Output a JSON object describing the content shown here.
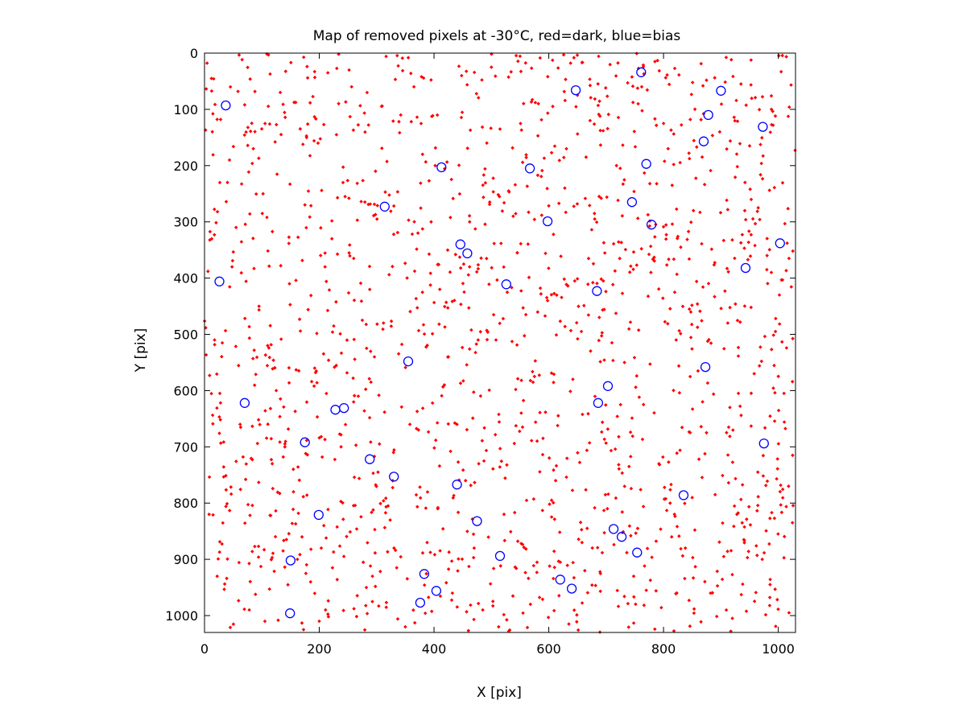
{
  "chart_data": {
    "type": "scatter",
    "title": "Map of removed pixels at -30°C, red=dark, blue=bias",
    "xlabel": "X [pix]",
    "ylabel": "Y [pix]",
    "xlim": [
      0,
      1030
    ],
    "ylim": [
      0,
      1030
    ],
    "y_inverted": true,
    "grid": false,
    "xticks": [
      0,
      200,
      400,
      600,
      800,
      1000
    ],
    "yticks": [
      0,
      100,
      200,
      300,
      400,
      500,
      600,
      700,
      800,
      900,
      1000
    ],
    "series": [
      {
        "name": "dark",
        "color": "#ff0000",
        "marker": "dot",
        "description": "Approximately 1500 red dots scattered uniformly over the full 1030x1030 frame; positions are densely random and not individually legible.",
        "approx_count": 1500,
        "points": [
          [
            12,
            45
          ],
          [
            28,
            118
          ],
          [
            40,
            230
          ],
          [
            55,
            310
          ],
          [
            70,
            92
          ],
          [
            85,
            170
          ],
          [
            95,
            450
          ],
          [
            110,
            520
          ],
          [
            125,
            600
          ],
          [
            140,
            700
          ],
          [
            155,
            780
          ],
          [
            170,
            860
          ],
          [
            185,
            940
          ],
          [
            200,
            1010
          ],
          [
            215,
            35
          ],
          [
            230,
            145
          ],
          [
            245,
            255
          ],
          [
            260,
            365
          ],
          [
            275,
            475
          ],
          [
            290,
            585
          ],
          [
            305,
            695
          ],
          [
            320,
            805
          ],
          [
            335,
            915
          ],
          [
            350,
            1020
          ],
          [
            365,
            60
          ],
          [
            380,
            180
          ],
          [
            395,
            300
          ],
          [
            410,
            420
          ],
          [
            425,
            540
          ],
          [
            440,
            660
          ],
          [
            455,
            760
          ],
          [
            470,
            880
          ],
          [
            485,
            990
          ],
          [
            500,
            25
          ],
          [
            515,
            135
          ],
          [
            530,
            245
          ],
          [
            545,
            355
          ],
          [
            560,
            465
          ],
          [
            575,
            575
          ],
          [
            590,
            685
          ],
          [
            605,
            795
          ],
          [
            620,
            905
          ],
          [
            635,
            1015
          ],
          [
            650,
            75
          ],
          [
            665,
            185
          ],
          [
            680,
            295
          ],
          [
            695,
            405
          ],
          [
            710,
            515
          ],
          [
            725,
            625
          ],
          [
            740,
            735
          ],
          [
            755,
            845
          ],
          [
            770,
            955
          ],
          [
            785,
            15
          ],
          [
            800,
            125
          ],
          [
            815,
            235
          ],
          [
            830,
            345
          ],
          [
            845,
            455
          ],
          [
            860,
            565
          ],
          [
            875,
            675
          ],
          [
            890,
            785
          ],
          [
            905,
            895
          ],
          [
            920,
            1005
          ],
          [
            935,
            55
          ],
          [
            950,
            165
          ],
          [
            965,
            275
          ],
          [
            980,
            385
          ],
          [
            995,
            495
          ],
          [
            1010,
            605
          ],
          [
            1025,
            715
          ],
          [
            8,
            820
          ],
          [
            22,
            930
          ],
          [
            48,
            380
          ],
          [
            62,
            660
          ],
          [
            78,
            990
          ],
          [
            102,
            250
          ],
          [
            118,
            730
          ],
          [
            132,
            70
          ],
          [
            148,
            410
          ],
          [
            162,
            900
          ],
          [
            178,
            150
          ],
          [
            192,
            560
          ],
          [
            208,
            840
          ],
          [
            222,
            330
          ],
          [
            238,
            700
          ],
          [
            252,
            30
          ],
          [
            268,
            610
          ],
          [
            282,
            950
          ],
          [
            298,
            210
          ],
          [
            312,
            480
          ],
          [
            328,
            760
          ],
          [
            342,
            110
          ],
          [
            358,
            660
          ],
          [
            372,
            320
          ],
          [
            388,
            870
          ],
          [
            402,
            200
          ],
          [
            418,
            590
          ],
          [
            432,
            960
          ],
          [
            448,
            40
          ],
          [
            462,
            380
          ],
          [
            478,
            730
          ],
          [
            492,
            160
          ],
          [
            508,
            510
          ],
          [
            522,
            820
          ],
          [
            538,
            290
          ],
          [
            552,
            640
          ],
          [
            568,
            980
          ],
          [
            582,
            90
          ],
          [
            598,
            440
          ],
          [
            612,
            760
          ],
          [
            628,
            240
          ],
          [
            642,
            580
          ],
          [
            658,
            870
          ],
          [
            672,
            120
          ],
          [
            688,
            470
          ],
          [
            702,
            810
          ],
          [
            718,
            200
          ],
          [
            732,
            550
          ],
          [
            748,
            930
          ],
          [
            762,
            60
          ],
          [
            778,
            390
          ],
          [
            792,
            730
          ],
          [
            808,
            170
          ],
          [
            822,
            510
          ],
          [
            838,
            880
          ],
          [
            852,
            280
          ],
          [
            868,
            620
          ],
          [
            882,
            960
          ],
          [
            898,
            140
          ],
          [
            912,
            480
          ],
          [
            928,
            820
          ],
          [
            942,
            230
          ],
          [
            958,
            570
          ],
          [
            972,
            900
          ],
          [
            988,
            100
          ],
          [
            1002,
            430
          ],
          [
            1018,
            770
          ]
        ]
      },
      {
        "name": "bias",
        "color": "#0000ff",
        "marker": "open-circle",
        "points": [
          [
            37,
            93
          ],
          [
            647,
            66
          ],
          [
            761,
            34
          ],
          [
            900,
            67
          ],
          [
            878,
            110
          ],
          [
            973,
            131
          ],
          [
            870,
            157
          ],
          [
            413,
            203
          ],
          [
            567,
            205
          ],
          [
            770,
            197
          ],
          [
            314,
            273
          ],
          [
            745,
            265
          ],
          [
            598,
            299
          ],
          [
            779,
            305
          ],
          [
            446,
            340
          ],
          [
            458,
            356
          ],
          [
            1003,
            338
          ],
          [
            26,
            406
          ],
          [
            526,
            411
          ],
          [
            943,
            382
          ],
          [
            684,
            423
          ],
          [
            355,
            548
          ],
          [
            873,
            558
          ],
          [
            70,
            622
          ],
          [
            228,
            634
          ],
          [
            243,
            631
          ],
          [
            703,
            592
          ],
          [
            686,
            622
          ],
          [
            175,
            692
          ],
          [
            975,
            694
          ],
          [
            288,
            722
          ],
          [
            330,
            753
          ],
          [
            440,
            767
          ],
          [
            835,
            786
          ],
          [
            199,
            821
          ],
          [
            475,
            832
          ],
          [
            713,
            846
          ],
          [
            727,
            860
          ],
          [
            754,
            888
          ],
          [
            150,
            902
          ],
          [
            515,
            894
          ],
          [
            383,
            926
          ],
          [
            620,
            936
          ],
          [
            640,
            952
          ],
          [
            404,
            956
          ],
          [
            376,
            977
          ],
          [
            149,
            996
          ]
        ]
      }
    ]
  }
}
